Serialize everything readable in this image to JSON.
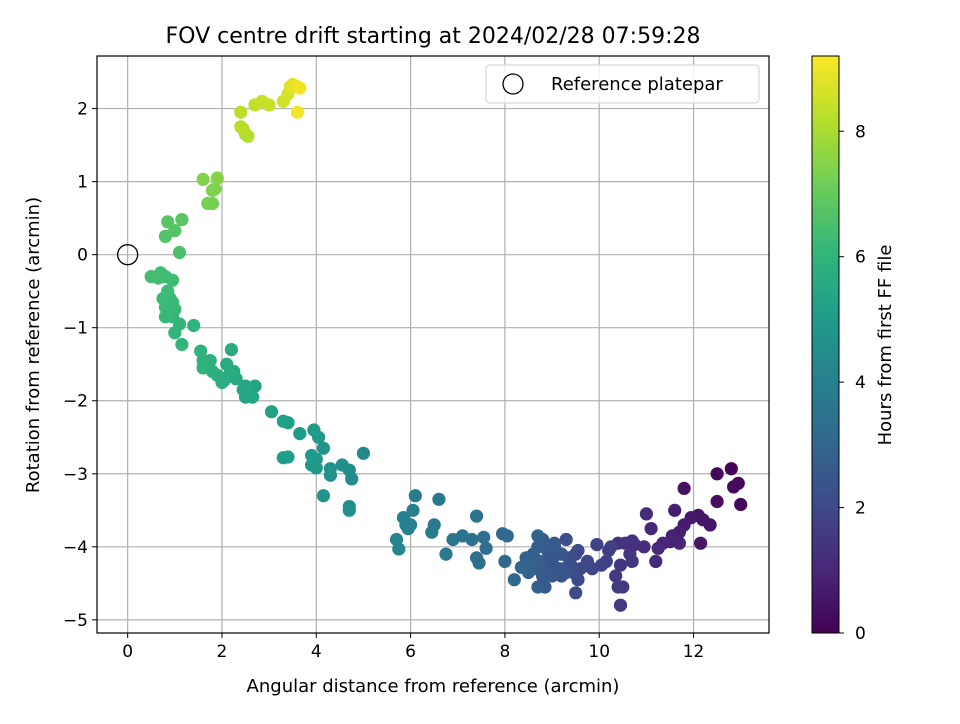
{
  "chart_data": {
    "type": "scatter",
    "title": "FOV centre drift starting at 2024/02/28 07:59:28",
    "xlabel": "Angular distance from reference (arcmin)",
    "ylabel": "Rotation from reference (arcmin)",
    "xlim": [
      -0.65,
      13.6
    ],
    "ylim": [
      -5.18,
      2.72
    ],
    "x_ticks": [
      0,
      2,
      4,
      6,
      8,
      10,
      12
    ],
    "y_ticks": [
      -5,
      -4,
      -3,
      -2,
      -1,
      0,
      1,
      2
    ],
    "x_tick_labels": [
      "0",
      "2",
      "4",
      "6",
      "8",
      "10",
      "12"
    ],
    "y_tick_labels": [
      "−5",
      "−4",
      "−3",
      "−2",
      "−1",
      "0",
      "1",
      "2"
    ],
    "grid": true,
    "legend": {
      "placement": "top-right",
      "label": "Reference platepar",
      "marker": "open-circle"
    },
    "reference_point": {
      "x": 0,
      "y": 0
    },
    "colorbar": {
      "label": "Hours from first FF file",
      "colormap": "viridis",
      "range": [
        0,
        9.2
      ],
      "ticks": [
        0,
        2,
        4,
        6,
        8
      ],
      "tick_labels": [
        "0",
        "2",
        "4",
        "6",
        "8"
      ]
    },
    "colormap_stops": [
      "#440154",
      "#482878",
      "#3e4a89",
      "#31688e",
      "#26828e",
      "#1f9e89",
      "#35b779",
      "#6ece58",
      "#b5de2b",
      "#fde725"
    ],
    "series": [
      {
        "points": [
          [
            12.8,
            -2.93,
            0.1
          ],
          [
            12.5,
            -3.0,
            0.15
          ],
          [
            12.95,
            -3.13,
            0.2
          ],
          [
            12.85,
            -3.18,
            0.25
          ],
          [
            13.0,
            -3.42,
            0.2
          ],
          [
            12.5,
            -3.38,
            0.3
          ],
          [
            11.8,
            -3.2,
            0.45
          ],
          [
            12.1,
            -3.57,
            0.5
          ],
          [
            12.2,
            -3.63,
            0.55
          ],
          [
            11.95,
            -3.6,
            0.6
          ],
          [
            12.35,
            -3.7,
            0.5
          ],
          [
            11.8,
            -3.7,
            0.7
          ],
          [
            11.6,
            -3.5,
            0.75
          ],
          [
            11.7,
            -3.8,
            0.8
          ],
          [
            11.55,
            -3.85,
            0.85
          ],
          [
            11.5,
            -3.93,
            0.9
          ],
          [
            11.7,
            -3.95,
            0.95
          ],
          [
            12.15,
            -3.95,
            0.55
          ],
          [
            11.35,
            -3.95,
            1.0
          ],
          [
            11.25,
            -4.02,
            1.05
          ],
          [
            11.2,
            -4.2,
            1.1
          ],
          [
            11.1,
            -3.75,
            1.1
          ],
          [
            11.0,
            -3.55,
            1.15
          ],
          [
            10.95,
            -4.0,
            1.2
          ],
          [
            10.75,
            -3.97,
            1.25
          ],
          [
            10.7,
            -3.92,
            1.3
          ],
          [
            10.55,
            -3.95,
            1.35
          ],
          [
            10.4,
            -3.95,
            1.4
          ],
          [
            10.65,
            -4.1,
            1.45
          ],
          [
            10.7,
            -4.2,
            1.5
          ],
          [
            10.45,
            -4.25,
            1.5
          ],
          [
            10.35,
            -4.4,
            1.55
          ],
          [
            10.5,
            -4.55,
            1.55
          ],
          [
            10.4,
            -4.55,
            1.6
          ],
          [
            10.45,
            -4.8,
            1.6
          ],
          [
            10.2,
            -4.05,
            1.65
          ],
          [
            10.15,
            -4.2,
            1.7
          ],
          [
            10.25,
            -4.0,
            1.75
          ],
          [
            10.05,
            -4.25,
            1.8
          ],
          [
            9.95,
            -3.97,
            1.85
          ],
          [
            9.85,
            -4.3,
            1.9
          ],
          [
            9.75,
            -4.2,
            1.95
          ],
          [
            9.6,
            -4.3,
            2.0
          ],
          [
            9.55,
            -4.45,
            2.0
          ],
          [
            9.5,
            -4.63,
            2.05
          ],
          [
            9.5,
            -4.1,
            2.1
          ],
          [
            9.55,
            -4.05,
            2.1
          ],
          [
            9.45,
            -4.35,
            2.15
          ],
          [
            9.4,
            -4.25,
            2.2
          ],
          [
            9.35,
            -4.15,
            2.2
          ],
          [
            9.3,
            -3.9,
            2.25
          ],
          [
            9.25,
            -4.3,
            2.3
          ],
          [
            9.2,
            -4.4,
            2.3
          ],
          [
            9.15,
            -4.1,
            2.35
          ],
          [
            9.1,
            -4.3,
            2.4
          ],
          [
            9.05,
            -4.0,
            2.4
          ],
          [
            9.0,
            -4.25,
            2.45
          ],
          [
            9.0,
            -4.4,
            2.5
          ],
          [
            8.95,
            -4.15,
            2.5
          ],
          [
            8.9,
            -4.05,
            2.55
          ],
          [
            8.85,
            -4.3,
            2.6
          ],
          [
            8.85,
            -4.55,
            2.6
          ],
          [
            8.8,
            -3.9,
            2.65
          ],
          [
            8.75,
            -4.2,
            2.7
          ],
          [
            8.7,
            -4.0,
            2.7
          ],
          [
            8.7,
            -4.55,
            2.75
          ],
          [
            8.65,
            -4.3,
            2.75
          ],
          [
            8.6,
            -4.1,
            2.8
          ],
          [
            8.55,
            -4.2,
            2.85
          ],
          [
            8.5,
            -4.35,
            2.85
          ],
          [
            8.7,
            -3.85,
            2.9
          ],
          [
            8.45,
            -4.15,
            2.9
          ],
          [
            9.05,
            -3.95,
            2.6
          ],
          [
            9.2,
            -4.1,
            2.5
          ],
          [
            9.3,
            -4.35,
            2.35
          ],
          [
            9.0,
            -4.2,
            2.45
          ],
          [
            8.8,
            -4.4,
            2.6
          ],
          [
            9.15,
            -4.3,
            2.45
          ],
          [
            8.35,
            -4.28,
            3.0
          ],
          [
            8.2,
            -4.45,
            3.05
          ],
          [
            8.0,
            -4.2,
            3.1
          ],
          [
            8.05,
            -3.85,
            3.15
          ],
          [
            7.95,
            -3.82,
            3.15
          ],
          [
            7.6,
            -4.02,
            3.25
          ],
          [
            7.55,
            -3.87,
            3.3
          ],
          [
            7.4,
            -4.15,
            3.35
          ],
          [
            7.45,
            -4.22,
            3.35
          ],
          [
            7.3,
            -3.9,
            3.4
          ],
          [
            7.4,
            -3.58,
            3.45
          ],
          [
            7.1,
            -3.85,
            3.5
          ],
          [
            6.9,
            -3.9,
            3.6
          ],
          [
            6.75,
            -4.1,
            3.65
          ],
          [
            6.6,
            -3.35,
            3.7
          ],
          [
            6.5,
            -3.7,
            3.75
          ],
          [
            6.45,
            -3.8,
            3.8
          ],
          [
            6.1,
            -3.3,
            3.85
          ],
          [
            6.05,
            -3.5,
            3.9
          ],
          [
            6.0,
            -3.7,
            3.95
          ],
          [
            5.95,
            -3.75,
            4.0
          ],
          [
            5.85,
            -3.6,
            4.05
          ],
          [
            5.9,
            -3.7,
            4.05
          ],
          [
            5.7,
            -3.9,
            4.1
          ],
          [
            5.75,
            -4.03,
            4.15
          ],
          [
            5.0,
            -2.72,
            4.35
          ],
          [
            4.75,
            -3.07,
            4.45
          ],
          [
            4.7,
            -2.95,
            4.5
          ],
          [
            4.7,
            -3.45,
            4.5
          ],
          [
            4.7,
            -3.5,
            4.55
          ],
          [
            4.55,
            -2.88,
            4.6
          ],
          [
            4.3,
            -3.02,
            4.65
          ],
          [
            4.3,
            -2.93,
            4.7
          ],
          [
            4.15,
            -3.3,
            4.75
          ],
          [
            4.15,
            -2.65,
            4.8
          ],
          [
            4.05,
            -2.5,
            4.85
          ],
          [
            4.0,
            -2.8,
            4.9
          ],
          [
            4.0,
            -2.92,
            4.9
          ],
          [
            3.9,
            -2.75,
            4.95
          ],
          [
            3.95,
            -2.4,
            5.0
          ],
          [
            3.9,
            -2.88,
            5.0
          ],
          [
            3.65,
            -2.45,
            5.05
          ],
          [
            3.4,
            -2.77,
            5.1
          ],
          [
            3.3,
            -2.78,
            5.1
          ],
          [
            3.4,
            -2.3,
            5.15
          ],
          [
            3.3,
            -2.28,
            5.2
          ],
          [
            3.05,
            -2.15,
            5.25
          ],
          [
            2.7,
            -1.8,
            5.35
          ],
          [
            2.65,
            -1.95,
            5.4
          ],
          [
            2.5,
            -1.95,
            5.4
          ],
          [
            2.5,
            -1.8,
            5.45
          ],
          [
            2.45,
            -1.85,
            5.45
          ],
          [
            2.3,
            -1.7,
            5.5
          ],
          [
            2.25,
            -1.6,
            5.55
          ],
          [
            2.2,
            -1.3,
            5.6
          ],
          [
            2.1,
            -1.5,
            5.6
          ],
          [
            2.15,
            -1.65,
            5.65
          ],
          [
            2.05,
            -1.72,
            5.7
          ],
          [
            2.0,
            -1.75,
            5.7
          ],
          [
            1.9,
            -1.65,
            5.75
          ],
          [
            1.8,
            -1.6,
            5.8
          ],
          [
            1.75,
            -1.45,
            5.8
          ],
          [
            1.6,
            -1.55,
            5.85
          ],
          [
            1.6,
            -1.45,
            5.85
          ],
          [
            1.55,
            -1.32,
            5.9
          ],
          [
            1.4,
            -0.97,
            5.95
          ],
          [
            1.15,
            -1.23,
            6.0
          ],
          [
            1.1,
            -0.95,
            6.05
          ],
          [
            1.0,
            -1.07,
            6.05
          ],
          [
            0.95,
            -0.85,
            6.1
          ],
          [
            1.0,
            -0.75,
            6.15
          ],
          [
            0.9,
            -0.6,
            6.15
          ],
          [
            0.95,
            -0.65,
            6.2
          ],
          [
            0.8,
            -0.85,
            6.2
          ],
          [
            0.8,
            -0.72,
            6.25
          ],
          [
            0.75,
            -0.6,
            6.25
          ],
          [
            0.85,
            -0.5,
            6.3
          ],
          [
            0.95,
            -0.35,
            6.3
          ],
          [
            0.8,
            -0.3,
            6.35
          ],
          [
            0.7,
            -0.25,
            6.35
          ],
          [
            0.65,
            -0.32,
            6.4
          ],
          [
            0.5,
            -0.3,
            6.4
          ],
          [
            1.1,
            0.03,
            6.55
          ],
          [
            0.8,
            0.25,
            6.65
          ],
          [
            1.0,
            0.33,
            6.7
          ],
          [
            0.85,
            0.45,
            6.75
          ],
          [
            1.15,
            0.48,
            6.8
          ],
          [
            1.7,
            0.7,
            7.25
          ],
          [
            1.8,
            0.7,
            7.3
          ],
          [
            1.8,
            0.88,
            7.35
          ],
          [
            1.85,
            0.9,
            7.4
          ],
          [
            1.6,
            1.03,
            7.45
          ],
          [
            1.9,
            1.05,
            7.5
          ],
          [
            2.5,
            1.65,
            8.1
          ],
          [
            2.55,
            1.62,
            8.15
          ],
          [
            2.4,
            1.75,
            8.2
          ],
          [
            2.45,
            1.72,
            8.2
          ],
          [
            2.4,
            1.95,
            8.25
          ],
          [
            2.7,
            2.05,
            8.35
          ],
          [
            2.85,
            2.1,
            8.4
          ],
          [
            3.0,
            2.05,
            8.45
          ],
          [
            3.3,
            2.1,
            8.55
          ],
          [
            3.4,
            2.2,
            8.65
          ],
          [
            3.45,
            2.3,
            8.75
          ],
          [
            3.5,
            2.33,
            8.85
          ],
          [
            3.6,
            2.3,
            8.95
          ],
          [
            3.65,
            2.28,
            9.0
          ],
          [
            3.6,
            1.95,
            9.05
          ]
        ]
      }
    ]
  }
}
